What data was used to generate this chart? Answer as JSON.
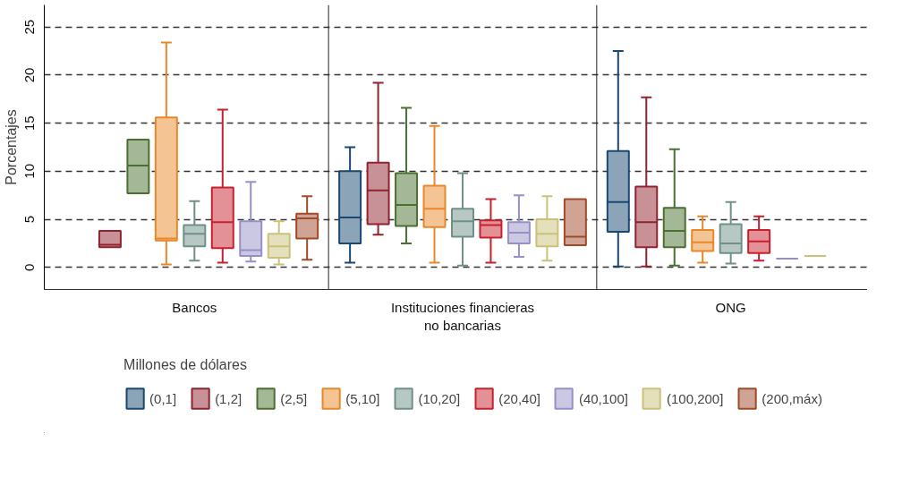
{
  "chart_data": {
    "type": "box",
    "categories": [
      "Bancos",
      "Instituciones financieras\nno bancarias",
      "ONG"
    ],
    "ylabel": "Porcentajes",
    "legend_title": "Millones de dólares",
    "legend": "bottom",
    "grid": "y",
    "ylim": [
      -2.3,
      27.3
    ],
    "yticks": [
      0,
      5,
      10,
      15,
      20,
      25
    ],
    "series": [
      {
        "name": "(0,1]",
        "color": "#1a4870",
        "boxes": [
          null,
          {
            "low": 0.5,
            "q1": 2.5,
            "median": 5.2,
            "q3": 10.0,
            "high": 12.5
          },
          {
            "low": 0.1,
            "q1": 3.7,
            "median": 6.8,
            "q3": 12.1,
            "high": 22.5
          }
        ]
      },
      {
        "name": "(1,2]",
        "color": "#90232f",
        "boxes": [
          {
            "low": 2.1,
            "q1": 2.1,
            "median": 2.35,
            "q3": 3.8,
            "high": 3.8
          },
          {
            "low": 3.4,
            "q1": 4.5,
            "median": 8.0,
            "q3": 10.9,
            "high": 19.2
          },
          {
            "low": 0.1,
            "q1": 2.1,
            "median": 4.7,
            "q3": 8.4,
            "high": 17.7
          }
        ]
      },
      {
        "name": "(2,5]",
        "color": "#4a7030",
        "boxes": [
          {
            "low": 7.7,
            "q1": 7.7,
            "median": 10.6,
            "q3": 13.3,
            "high": 13.3
          },
          {
            "low": 2.5,
            "q1": 4.3,
            "median": 6.5,
            "q3": 9.8,
            "high": 16.6
          },
          {
            "low": 0.2,
            "q1": 2.1,
            "median": 3.8,
            "q3": 6.2,
            "high": 12.3
          }
        ]
      },
      {
        "name": "(5,10]",
        "color": "#e8882a",
        "boxes": [
          {
            "low": 0.3,
            "q1": 2.8,
            "median": 3.0,
            "q3": 15.6,
            "high": 23.4
          },
          {
            "low": 0.5,
            "q1": 4.2,
            "median": 6.1,
            "q3": 8.5,
            "high": 14.7
          },
          {
            "low": 0.5,
            "q1": 1.7,
            "median": 2.6,
            "q3": 3.9,
            "high": 5.3
          }
        ]
      },
      {
        "name": "(10,20]",
        "color": "#6f9088",
        "boxes": [
          {
            "low": 0.7,
            "q1": 2.2,
            "median": 3.5,
            "q3": 4.4,
            "high": 6.9
          },
          {
            "low": 0.2,
            "q1": 3.2,
            "median": 4.8,
            "q3": 6.1,
            "high": 9.8
          },
          {
            "low": 0.4,
            "q1": 1.5,
            "median": 2.5,
            "q3": 4.5,
            "high": 6.8
          }
        ]
      },
      {
        "name": "(20,40]",
        "color": "#c8202f",
        "boxes": [
          {
            "low": 0.5,
            "q1": 2.0,
            "median": 4.7,
            "q3": 8.3,
            "high": 16.4
          },
          {
            "low": 0.5,
            "q1": 3.1,
            "median": 4.4,
            "q3": 4.9,
            "high": 7.1
          },
          {
            "low": 0.7,
            "q1": 1.5,
            "median": 2.7,
            "q3": 3.9,
            "high": 5.3
          }
        ]
      },
      {
        "name": "(40,100]",
        "color": "#9790c8",
        "boxes": [
          {
            "low": 0.6,
            "q1": 1.2,
            "median": 1.8,
            "q3": 4.8,
            "high": 8.9
          },
          {
            "low": 1.1,
            "q1": 2.5,
            "median": 3.6,
            "q3": 4.7,
            "high": 7.5
          },
          {
            "low": 0.9,
            "q1": 0.9,
            "median": 0.9,
            "q3": 0.9,
            "high": 0.9
          }
        ]
      },
      {
        "name": "(100,200]",
        "color": "#cbc17a",
        "boxes": [
          {
            "low": 0.3,
            "q1": 1.0,
            "median": 2.2,
            "q3": 3.5,
            "high": 4.8
          },
          {
            "low": 0.7,
            "q1": 2.2,
            "median": 3.5,
            "q3": 5.0,
            "high": 7.4
          },
          {
            "low": 1.2,
            "q1": 1.2,
            "median": 1.2,
            "q3": 1.2,
            "high": 1.2
          }
        ]
      },
      {
        "name": "(200,máx)",
        "color": "#a04a28",
        "boxes": [
          {
            "low": 0.8,
            "q1": 3.0,
            "median": 5.1,
            "q3": 5.6,
            "high": 7.4
          },
          {
            "low": 2.3,
            "q1": 2.3,
            "median": 3.2,
            "q3": 7.1,
            "high": 7.1
          },
          null
        ]
      }
    ]
  }
}
